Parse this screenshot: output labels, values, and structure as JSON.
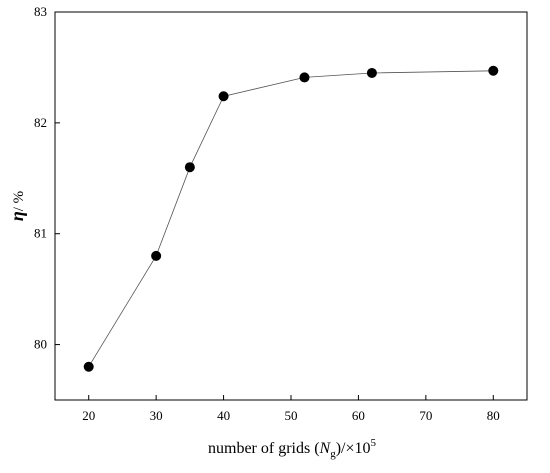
{
  "chart_data": {
    "type": "line",
    "title": "",
    "xlabel": {
      "prefix": "number of grids (",
      "var": "N",
      "sub": "g",
      "suffix": ")/×10",
      "exp": "5"
    },
    "ylabel": {
      "var": "η",
      "suffix": "/ %"
    },
    "xlim": [
      15,
      85
    ],
    "ylim": [
      79.5,
      83
    ],
    "xticks": [
      20,
      30,
      40,
      50,
      60,
      70,
      80
    ],
    "yticks": [
      80,
      81,
      82,
      83
    ],
    "grid": false,
    "legend": "none",
    "series": [
      {
        "x": [
          20,
          30,
          35,
          40,
          52,
          62,
          80
        ],
        "y": [
          79.8,
          80.8,
          81.6,
          82.24,
          82.41,
          82.45,
          82.47
        ],
        "line_color": "#555555",
        "marker_color": "#000000"
      }
    ]
  }
}
